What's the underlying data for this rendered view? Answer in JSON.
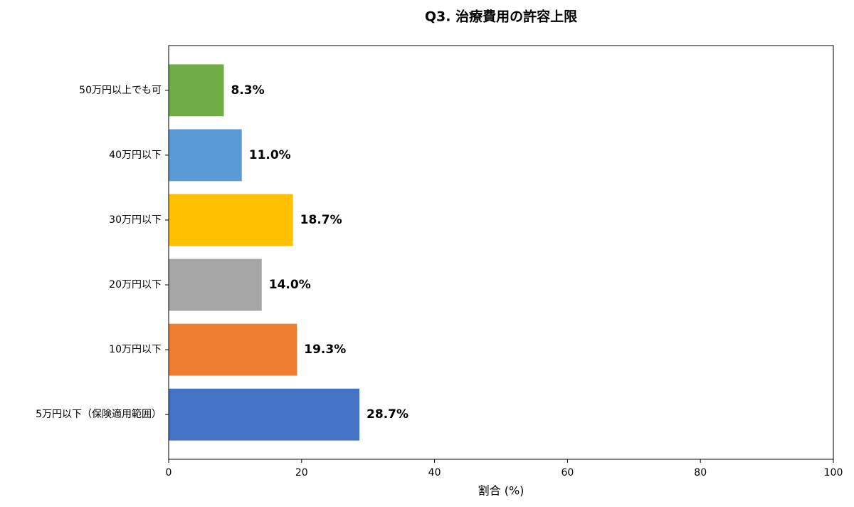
{
  "chart_data": {
    "type": "barh",
    "title": "Q3. 治療費用の許容上限",
    "categories": [
      "50万円以上でも可",
      "40万円以下",
      "30万円以下",
      "20万円以下",
      "10万円以下",
      "5万円以下（保険適用範囲）"
    ],
    "values": [
      8.3,
      11.0,
      18.7,
      14.0,
      19.3,
      28.7
    ],
    "value_labels": [
      "8.3%",
      "11.0%",
      "18.7%",
      "14.0%",
      "19.3%",
      "28.7%"
    ],
    "colors": [
      "#70ad47",
      "#5b9bd5",
      "#ffc000",
      "#a5a5a5",
      "#ed7d31",
      "#4472c4"
    ],
    "xlabel": "割合 (%)",
    "xlim": [
      0,
      100
    ],
    "xticks": [
      0,
      20,
      40,
      60,
      80,
      100
    ],
    "grid": false
  }
}
